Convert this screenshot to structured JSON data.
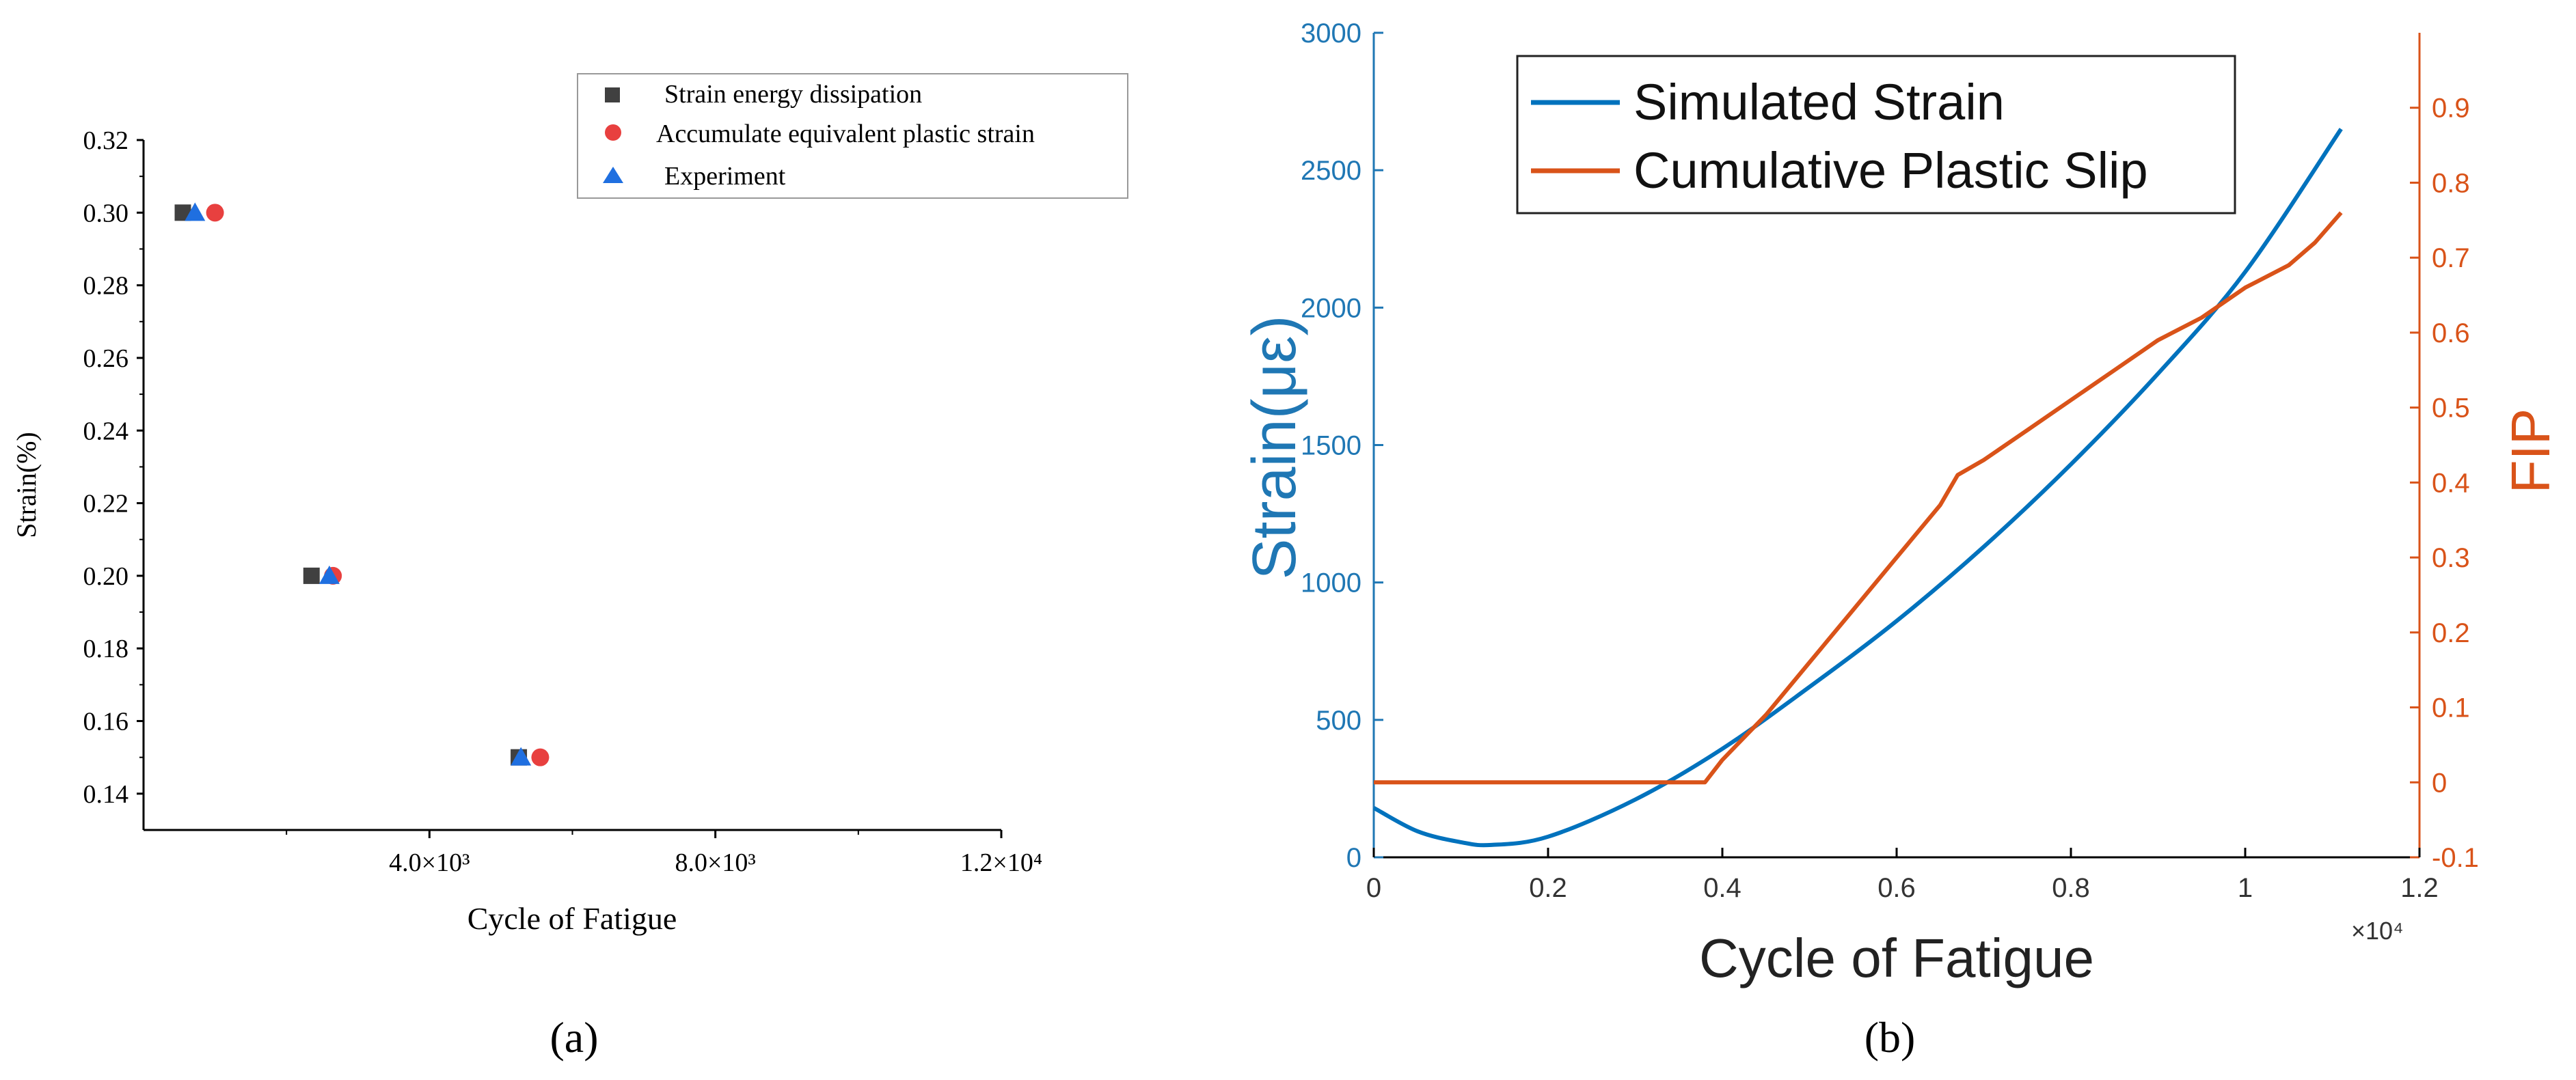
{
  "chart_data": [
    {
      "panel": "a",
      "type": "scatter",
      "panel_label": "(a)",
      "xlabel": "Cycle of Fatigue",
      "ylabel": "Strain(%)",
      "xlim": [
        0,
        12000
      ],
      "ylim": [
        0.13,
        0.32
      ],
      "x_ticks": [
        {
          "value": 4000,
          "label": "4.0×10³"
        },
        {
          "value": 8000,
          "label": "8.0×10³"
        },
        {
          "value": 12000,
          "label": "1.2×10⁴"
        }
      ],
      "y_ticks": [
        {
          "value": 0.14,
          "label": "0.14"
        },
        {
          "value": 0.16,
          "label": "0.16"
        },
        {
          "value": 0.18,
          "label": "0.18"
        },
        {
          "value": 0.2,
          "label": "0.20"
        },
        {
          "value": 0.22,
          "label": "0.22"
        },
        {
          "value": 0.24,
          "label": "0.24"
        },
        {
          "value": 0.26,
          "label": "0.26"
        },
        {
          "value": 0.28,
          "label": "0.28"
        },
        {
          "value": 0.3,
          "label": "0.30"
        },
        {
          "value": 0.32,
          "label": "0.32"
        }
      ],
      "legend_position": "top-right",
      "series": [
        {
          "name": "Strain energy dissipation",
          "marker": "square",
          "color": "#404040",
          "points": [
            {
              "x": 550,
              "y": 0.3
            },
            {
              "x": 2350,
              "y": 0.2
            },
            {
              "x": 5250,
              "y": 0.15
            }
          ]
        },
        {
          "name": "Accumulate equivalent plastic strain",
          "marker": "circle",
          "color": "#e8403f",
          "points": [
            {
              "x": 1000,
              "y": 0.3
            },
            {
              "x": 2650,
              "y": 0.2
            },
            {
              "x": 5550,
              "y": 0.15
            }
          ]
        },
        {
          "name": "Experiment",
          "marker": "triangle",
          "color": "#1f6fe0",
          "points": [
            {
              "x": 720,
              "y": 0.3
            },
            {
              "x": 2600,
              "y": 0.2
            },
            {
              "x": 5280,
              "y": 0.15
            }
          ]
        }
      ]
    },
    {
      "panel": "b",
      "type": "line",
      "panel_label": "(b)",
      "xlabel": "Cycle of Fatigue",
      "x_exponent": "×10⁴",
      "ylabel_left": "Strain(με)",
      "ylabel_right": "FIP",
      "xlim": [
        0,
        1.2
      ],
      "ylim_left": [
        0,
        3000
      ],
      "ylim_right": [
        -0.1,
        1.0
      ],
      "x_ticks": [
        "0",
        "0.2",
        "0.4",
        "0.6",
        "0.8",
        "1",
        "1.2"
      ],
      "y_left_ticks": [
        "0",
        "500",
        "1000",
        "1500",
        "2000",
        "2500",
        "3000"
      ],
      "y_right_ticks": [
        "-0.1",
        "0",
        "0.1",
        "0.2",
        "0.3",
        "0.4",
        "0.5",
        "0.6",
        "0.7",
        "0.8",
        "0.9"
      ],
      "legend_position": "top-left",
      "colors": {
        "left_axis": "#1f77b4",
        "right_axis": "#d95319",
        "simulated": "#0072bd",
        "plastic": "#d95319"
      },
      "series": [
        {
          "name": "Simulated Strain",
          "axis": "left",
          "x": [
            0,
            0.05,
            0.1,
            0.135,
            0.2,
            0.3,
            0.4,
            0.5,
            0.6,
            0.7,
            0.8,
            0.9,
            1.0,
            1.11
          ],
          "y": [
            180,
            95,
            55,
            45,
            75,
            210,
            395,
            620,
            860,
            1130,
            1430,
            1760,
            2130,
            2650
          ]
        },
        {
          "name": "Cumulative Plastic Slip",
          "axis": "right",
          "x": [
            0,
            0.2,
            0.38,
            0.4,
            0.45,
            0.5,
            0.55,
            0.6,
            0.65,
            0.67,
            0.7,
            0.75,
            0.8,
            0.85,
            0.9,
            0.95,
            1.0,
            1.05,
            1.08,
            1.11
          ],
          "y": [
            0,
            0,
            0,
            0.03,
            0.09,
            0.16,
            0.23,
            0.3,
            0.37,
            0.41,
            0.43,
            0.47,
            0.51,
            0.55,
            0.59,
            0.62,
            0.66,
            0.69,
            0.72,
            0.76
          ]
        }
      ]
    }
  ]
}
